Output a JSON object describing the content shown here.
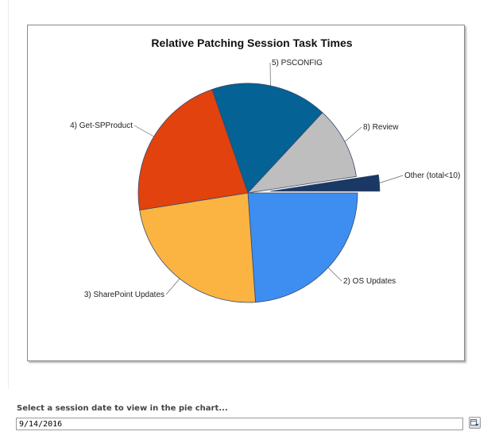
{
  "chart_data": {
    "type": "pie",
    "title": "Relative Patching Session Task Times",
    "slices": [
      {
        "label": "2) OS Updates",
        "value": 23.9,
        "color": "#3d8ef0",
        "exploded": false
      },
      {
        "label": "3) SharePoint Updates",
        "value": 23.6,
        "color": "#fbb442",
        "exploded": false
      },
      {
        "label": "4) Get-SPProduct",
        "value": 22.2,
        "color": "#e2420d",
        "exploded": false
      },
      {
        "label": "5) PSCONFIG",
        "value": 17.2,
        "color": "#046294",
        "exploded": false
      },
      {
        "label": "8) Review",
        "value": 10.7,
        "color": "#bebebe",
        "exploded": false
      },
      {
        "label": "Other (total<10)",
        "value": 2.4,
        "color": "#193864",
        "exploded": true
      }
    ],
    "legend": "none"
  },
  "picker": {
    "label": "Select a session date to view in the pie chart...",
    "value": "9/14/2016",
    "button_icon": "calendar-dropdown-icon"
  }
}
